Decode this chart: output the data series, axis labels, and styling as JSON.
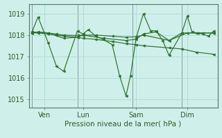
{
  "xlabel": "Pression niveau de la mer( hPa )",
  "bg_color": "#cff0ea",
  "line_color": "#2d6e2d",
  "grid_color": "#b0ddd5",
  "axis_color": "#4a7a6a",
  "ylim": [
    1014.6,
    1019.45
  ],
  "xlim": [
    -0.15,
    10.15
  ],
  "yticks": [
    1015,
    1016,
    1017,
    1018,
    1019
  ],
  "xtick_labels": [
    "Ven",
    "Lun",
    "Sam",
    "Dim"
  ],
  "xtick_positions": [
    0.7,
    2.8,
    5.7,
    8.5
  ],
  "vline_positions": [
    0.0,
    2.5,
    5.5,
    8.2
  ],
  "series1": [
    [
      0.0,
      1018.1
    ],
    [
      0.35,
      1018.85
    ],
    [
      0.9,
      1017.65
    ],
    [
      1.35,
      1016.55
    ],
    [
      1.75,
      1016.3
    ],
    [
      2.5,
      1018.2
    ],
    [
      2.8,
      1018.05
    ],
    [
      3.1,
      1018.25
    ],
    [
      3.5,
      1017.95
    ],
    [
      3.9,
      1017.8
    ],
    [
      4.4,
      1017.55
    ],
    [
      4.8,
      1016.1
    ],
    [
      5.15,
      1015.15
    ],
    [
      5.4,
      1016.1
    ],
    [
      5.7,
      1017.85
    ],
    [
      6.1,
      1019.0
    ],
    [
      6.5,
      1018.2
    ],
    [
      6.8,
      1018.2
    ],
    [
      7.15,
      1017.75
    ],
    [
      7.5,
      1017.05
    ],
    [
      8.2,
      1018.1
    ],
    [
      8.5,
      1018.9
    ],
    [
      8.75,
      1018.15
    ],
    [
      9.05,
      1018.1
    ],
    [
      9.35,
      1018.05
    ],
    [
      9.65,
      1017.95
    ],
    [
      9.95,
      1018.2
    ]
  ],
  "series2": [
    [
      0.0,
      1018.1
    ],
    [
      0.35,
      1018.1
    ],
    [
      0.9,
      1018.05
    ],
    [
      1.35,
      1018.0
    ],
    [
      1.75,
      1017.95
    ],
    [
      2.5,
      1017.9
    ],
    [
      2.8,
      1017.85
    ],
    [
      3.5,
      1017.8
    ],
    [
      4.4,
      1017.7
    ],
    [
      5.15,
      1017.6
    ],
    [
      5.7,
      1017.55
    ],
    [
      6.1,
      1017.5
    ],
    [
      7.5,
      1017.4
    ],
    [
      8.2,
      1017.35
    ],
    [
      9.0,
      1017.2
    ],
    [
      9.95,
      1017.1
    ]
  ],
  "series3": [
    [
      0.0,
      1018.1
    ],
    [
      0.35,
      1018.15
    ],
    [
      0.9,
      1018.1
    ],
    [
      1.35,
      1018.05
    ],
    [
      1.75,
      1018.0
    ],
    [
      2.5,
      1017.98
    ],
    [
      2.8,
      1018.0
    ],
    [
      3.5,
      1018.0
    ],
    [
      4.4,
      1017.95
    ],
    [
      5.15,
      1017.9
    ],
    [
      5.7,
      1017.92
    ],
    [
      6.1,
      1018.0
    ],
    [
      7.5,
      1017.75
    ],
    [
      8.2,
      1018.1
    ],
    [
      9.0,
      1018.1
    ],
    [
      9.95,
      1018.1
    ]
  ],
  "series4": [
    [
      0.0,
      1018.15
    ],
    [
      0.9,
      1018.1
    ],
    [
      1.75,
      1017.85
    ],
    [
      2.5,
      1017.9
    ],
    [
      2.8,
      1018.0
    ],
    [
      3.9,
      1017.85
    ],
    [
      5.15,
      1017.75
    ],
    [
      5.7,
      1017.8
    ],
    [
      6.1,
      1018.05
    ],
    [
      6.8,
      1018.15
    ],
    [
      7.5,
      1017.75
    ],
    [
      8.5,
      1018.1
    ],
    [
      9.35,
      1018.1
    ],
    [
      9.95,
      1018.1
    ]
  ]
}
